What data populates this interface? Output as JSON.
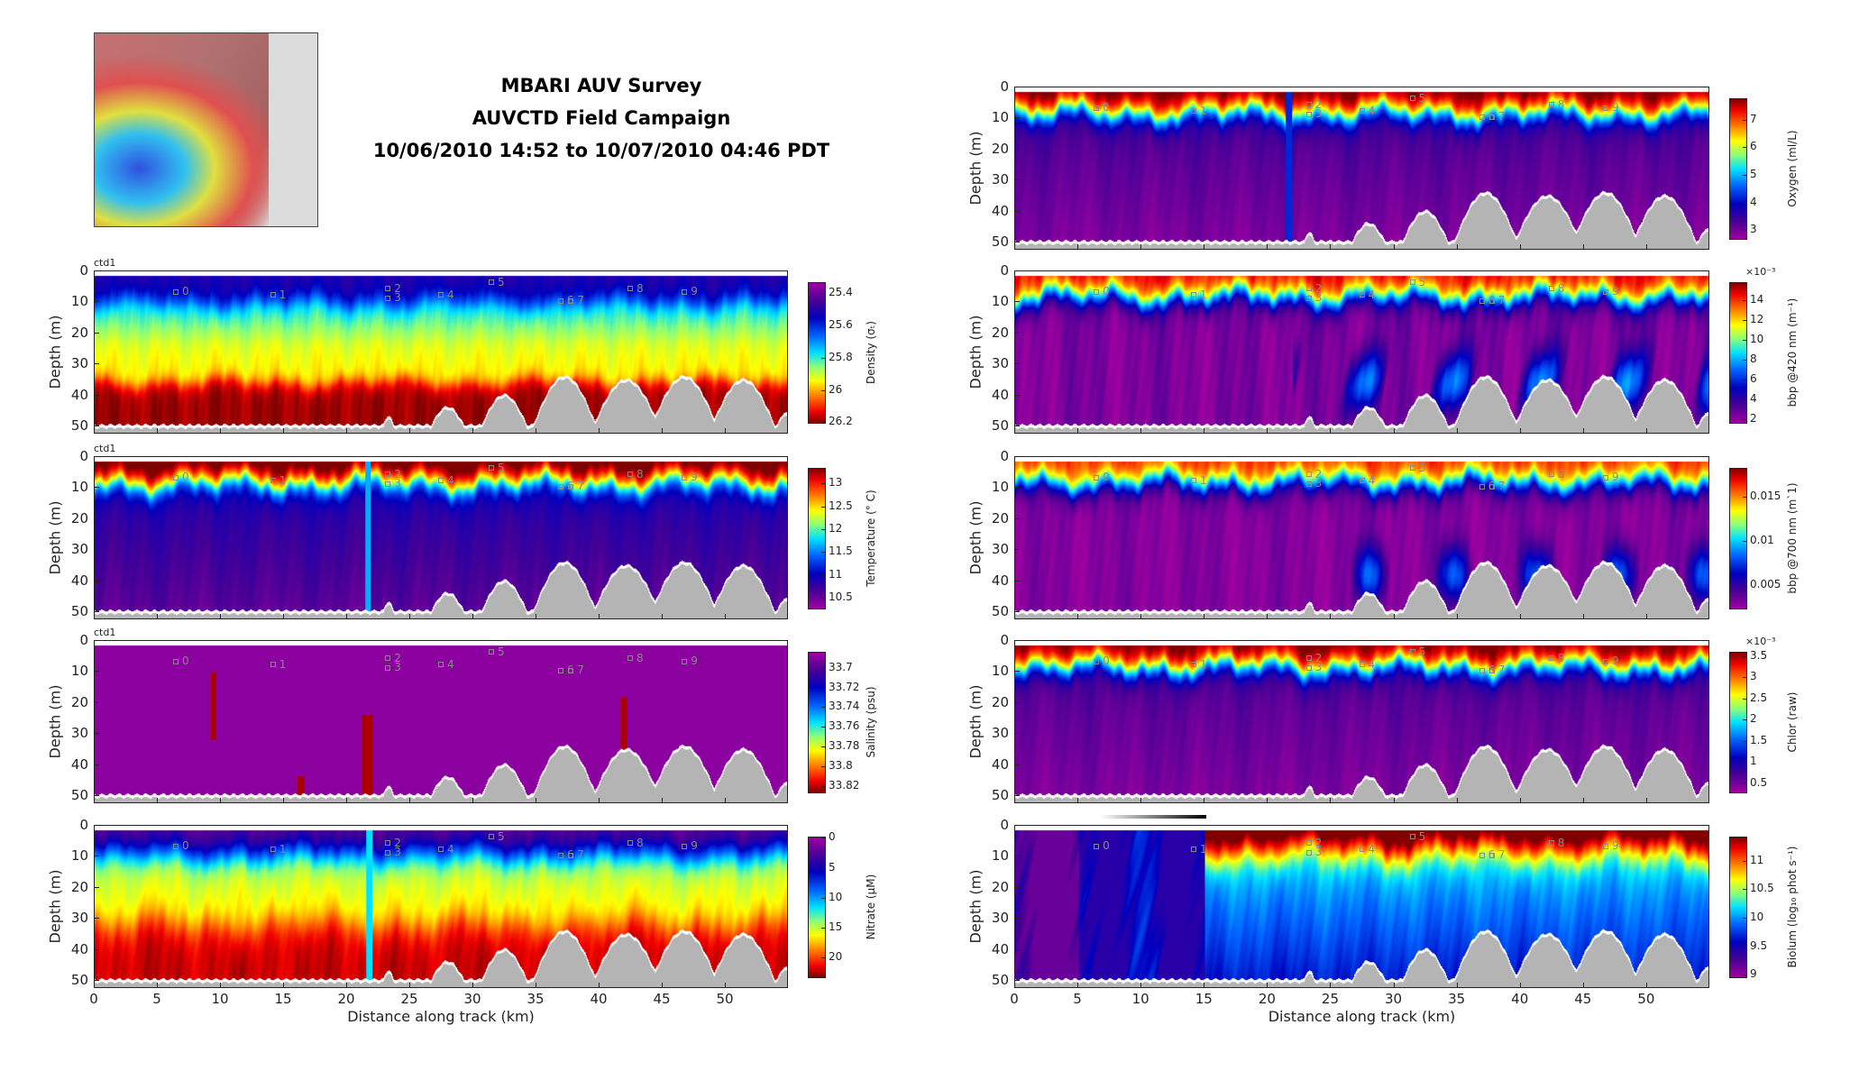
{
  "header": {
    "line1": "MBARI AUV Survey",
    "line2": "AUVCTD Field Campaign",
    "line3": "10/06/2010 14:52 to 10/07/2010 04:46 PDT"
  },
  "map": {
    "icon": "bathymetry-map-thumbnail"
  },
  "chart_data": {
    "type": "heatmap",
    "xlabel": "Distance along track (km)",
    "ylabel": "Depth (m)",
    "xlim": [
      0,
      55
    ],
    "ylim": [
      52.5,
      0
    ],
    "xticks": [
      0,
      5,
      10,
      15,
      20,
      25,
      30,
      35,
      40,
      45,
      50
    ],
    "yticks": [
      0,
      10,
      20,
      30,
      40,
      50
    ],
    "markers": [
      {
        "label": "0",
        "km": 6.5,
        "depth": 7
      },
      {
        "label": "1",
        "km": 14.2,
        "depth": 8
      },
      {
        "label": "2",
        "km": 23.3,
        "depth": 6
      },
      {
        "label": "3",
        "km": 23.3,
        "depth": 9
      },
      {
        "label": "4",
        "km": 27.5,
        "depth": 8
      },
      {
        "label": "5",
        "km": 31.5,
        "depth": 4
      },
      {
        "label": "6",
        "km": 37,
        "depth": 10
      },
      {
        "label": "7",
        "km": 37.8,
        "depth": 10
      },
      {
        "label": "8",
        "km": 42.5,
        "depth": 6
      },
      {
        "label": "9",
        "km": 46.8,
        "depth": 7
      }
    ],
    "left_panels": [
      {
        "id": "density",
        "ctd_label": "ctd1",
        "colorbar": {
          "label": "Density (σₜ)",
          "top": 25.33,
          "bottom": 26.21,
          "ticks": [
            25.4,
            25.6,
            25.8,
            26,
            26.2
          ],
          "multiplier": ""
        }
      },
      {
        "id": "temperature",
        "ctd_label": "ctd1",
        "colorbar": {
          "label": "Temperature (° C)",
          "top": 13.34,
          "bottom": 10.24,
          "ticks": [
            13,
            12.5,
            12,
            11.5,
            11,
            10.5
          ],
          "multiplier": ""
        }
      },
      {
        "id": "salinity",
        "ctd_label": "ctd1",
        "colorbar": {
          "label": "Salinity (psu)",
          "top": 33.684,
          "bottom": 33.827,
          "ticks": [
            33.7,
            33.72,
            33.74,
            33.76,
            33.78,
            33.8,
            33.82
          ],
          "multiplier": ""
        }
      },
      {
        "id": "nitrate",
        "ctd_label": "",
        "colorbar": {
          "label": "Nitrate (μM)",
          "top": -0.2,
          "bottom": 23.4,
          "ticks": [
            0,
            5,
            10,
            15,
            20
          ],
          "multiplier": ""
        }
      }
    ],
    "right_panels": [
      {
        "id": "oxygen",
        "ctd_label": "",
        "colorbar": {
          "label": "Oxygen (ml/L)",
          "top": 7.78,
          "bottom": 2.65,
          "ticks": [
            7,
            6,
            5,
            4,
            3
          ],
          "multiplier": ""
        }
      },
      {
        "id": "bbp420",
        "ctd_label": "",
        "colorbar": {
          "label": "bbp @420 nm (m⁻¹)",
          "top": 15.8,
          "bottom": 1.5,
          "ticks": [
            14,
            12,
            10,
            8,
            6,
            4,
            2
          ],
          "multiplier": "×10⁻³"
        }
      },
      {
        "id": "bbp700",
        "ctd_label": "",
        "colorbar": {
          "label": "bbp @700 nm (m`1)",
          "top": 0.0183,
          "bottom": 0.0022,
          "ticks": [
            0.015,
            0.01,
            0.005
          ],
          "multiplier": ""
        }
      },
      {
        "id": "chlor",
        "ctd_label": "",
        "colorbar": {
          "label": "Chlor (raw)",
          "top": 3.6,
          "bottom": 0.26,
          "ticks": [
            3.5,
            3,
            2.5,
            2,
            1.5,
            1,
            0.5
          ],
          "multiplier": "×10⁻³"
        }
      },
      {
        "id": "biolum",
        "ctd_label": "",
        "colorbar": {
          "label": "Biolum (log₁₀ phot s⁻¹)",
          "top": 11.42,
          "bottom": 8.94,
          "ticks": [
            11,
            10.5,
            10,
            9.5,
            9
          ],
          "multiplier": ""
        }
      }
    ]
  }
}
